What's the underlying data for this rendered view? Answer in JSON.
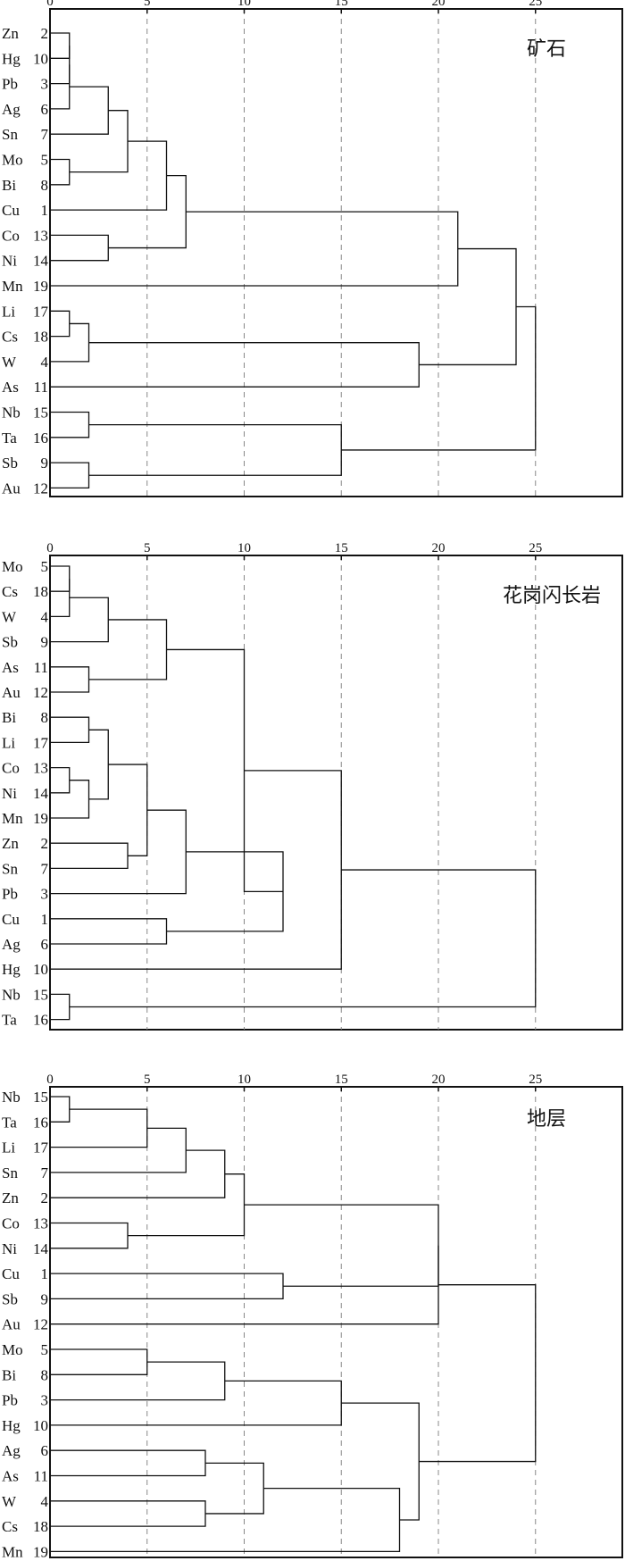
{
  "chart_data": [
    {
      "type": "dendrogram",
      "title": "矿石",
      "x_ticks": [
        0,
        5,
        10,
        15,
        20,
        25
      ],
      "xlim": [
        0,
        25
      ],
      "grid": "vertical dashed at 5, 10, 15, 20, 25",
      "leaves": [
        {
          "element": "Zn",
          "id": "2"
        },
        {
          "element": "Hg",
          "id": "10"
        },
        {
          "element": "Pb",
          "id": "3"
        },
        {
          "element": "Ag",
          "id": "6"
        },
        {
          "element": "Sn",
          "id": "7"
        },
        {
          "element": "Mo",
          "id": "5"
        },
        {
          "element": "Bi",
          "id": "8"
        },
        {
          "element": "Cu",
          "id": "1"
        },
        {
          "element": "Co",
          "id": "13"
        },
        {
          "element": "Ni",
          "id": "14"
        },
        {
          "element": "Mn",
          "id": "19"
        },
        {
          "element": "Li",
          "id": "17"
        },
        {
          "element": "Cs",
          "id": "18"
        },
        {
          "element": "W",
          "id": "4"
        },
        {
          "element": "As",
          "id": "11"
        },
        {
          "element": "Nb",
          "id": "15"
        },
        {
          "element": "Ta",
          "id": "16"
        },
        {
          "element": "Sb",
          "id": "9"
        },
        {
          "element": "Au",
          "id": "12"
        }
      ],
      "merges": [
        {
          "a": 0,
          "b": 1,
          "dist": 1
        },
        {
          "a": 19,
          "b": 2,
          "dist": 1
        },
        {
          "a": 20,
          "b": 3,
          "dist": 1
        },
        {
          "a": 21,
          "b": 4,
          "dist": 3
        },
        {
          "a": 5,
          "b": 6,
          "dist": 1
        },
        {
          "a": 22,
          "b": 23,
          "dist": 4
        },
        {
          "a": 24,
          "b": 7,
          "dist": 6
        },
        {
          "a": 8,
          "b": 9,
          "dist": 3
        },
        {
          "a": 25,
          "b": 26,
          "dist": 7
        },
        {
          "a": 27,
          "b": 10,
          "dist": 21
        },
        {
          "a": 11,
          "b": 12,
          "dist": 1
        },
        {
          "a": 29,
          "b": 13,
          "dist": 2
        },
        {
          "a": 30,
          "b": 14,
          "dist": 19
        },
        {
          "a": 28,
          "b": 31,
          "dist": 24
        },
        {
          "a": 15,
          "b": 16,
          "dist": 2
        },
        {
          "a": 17,
          "b": 18,
          "dist": 2
        },
        {
          "a": 33,
          "b": 34,
          "dist": 15
        },
        {
          "a": 32,
          "b": 35,
          "dist": 25
        }
      ]
    },
    {
      "type": "dendrogram",
      "title": "花岗闪长岩",
      "x_ticks": [
        0,
        5,
        10,
        15,
        20,
        25
      ],
      "xlim": [
        0,
        25
      ],
      "grid": "vertical dashed at 5, 10, 15, 20, 25",
      "leaves": [
        {
          "element": "Mo",
          "id": "5"
        },
        {
          "element": "Cs",
          "id": "18"
        },
        {
          "element": "W",
          "id": "4"
        },
        {
          "element": "Sb",
          "id": "9"
        },
        {
          "element": "As",
          "id": "11"
        },
        {
          "element": "Au",
          "id": "12"
        },
        {
          "element": "Bi",
          "id": "8"
        },
        {
          "element": "Li",
          "id": "17"
        },
        {
          "element": "Co",
          "id": "13"
        },
        {
          "element": "Ni",
          "id": "14"
        },
        {
          "element": "Mn",
          "id": "19"
        },
        {
          "element": "Zn",
          "id": "2"
        },
        {
          "element": "Sn",
          "id": "7"
        },
        {
          "element": "Pb",
          "id": "3"
        },
        {
          "element": "Cu",
          "id": "1"
        },
        {
          "element": "Ag",
          "id": "6"
        },
        {
          "element": "Hg",
          "id": "10"
        },
        {
          "element": "Nb",
          "id": "15"
        },
        {
          "element": "Ta",
          "id": "16"
        }
      ],
      "merges": [
        {
          "a": 0,
          "b": 1,
          "dist": 1
        },
        {
          "a": 19,
          "b": 2,
          "dist": 1
        },
        {
          "a": 20,
          "b": 3,
          "dist": 3
        },
        {
          "a": 4,
          "b": 5,
          "dist": 2
        },
        {
          "a": 21,
          "b": 22,
          "dist": 6
        },
        {
          "a": 6,
          "b": 7,
          "dist": 2
        },
        {
          "a": 8,
          "b": 9,
          "dist": 1
        },
        {
          "a": 25,
          "b": 10,
          "dist": 2
        },
        {
          "a": 24,
          "b": 26,
          "dist": 3
        },
        {
          "a": 11,
          "b": 12,
          "dist": 4
        },
        {
          "a": 27,
          "b": 28,
          "dist": 5
        },
        {
          "a": 29,
          "b": 13,
          "dist": 7
        },
        {
          "a": 14,
          "b": 15,
          "dist": 6
        },
        {
          "a": 30,
          "b": 31,
          "dist": 12
        },
        {
          "a": 23,
          "b": 32,
          "dist": 10
        },
        {
          "a": 33,
          "b": 16,
          "dist": 15
        },
        {
          "a": 17,
          "b": 18,
          "dist": 1
        },
        {
          "a": 34,
          "b": 35,
          "dist": 25
        }
      ]
    },
    {
      "type": "dendrogram",
      "title": "地层",
      "x_ticks": [
        0,
        5,
        10,
        15,
        20,
        25
      ],
      "xlim": [
        0,
        25
      ],
      "grid": "vertical dashed at 5, 10, 15, 20, 25",
      "leaves": [
        {
          "element": "Nb",
          "id": "15"
        },
        {
          "element": "Ta",
          "id": "16"
        },
        {
          "element": "Li",
          "id": "17"
        },
        {
          "element": "Sn",
          "id": "7"
        },
        {
          "element": "Zn",
          "id": "2"
        },
        {
          "element": "Co",
          "id": "13"
        },
        {
          "element": "Ni",
          "id": "14"
        },
        {
          "element": "Cu",
          "id": "1"
        },
        {
          "element": "Sb",
          "id": "9"
        },
        {
          "element": "Au",
          "id": "12"
        },
        {
          "element": "Mo",
          "id": "5"
        },
        {
          "element": "Bi",
          "id": "8"
        },
        {
          "element": "Pb",
          "id": "3"
        },
        {
          "element": "Hg",
          "id": "10"
        },
        {
          "element": "Ag",
          "id": "6"
        },
        {
          "element": "As",
          "id": "11"
        },
        {
          "element": "W",
          "id": "4"
        },
        {
          "element": "Cs",
          "id": "18"
        },
        {
          "element": "Mn",
          "id": "19"
        }
      ],
      "merges": [
        {
          "a": 0,
          "b": 1,
          "dist": 1
        },
        {
          "a": 19,
          "b": 2,
          "dist": 5
        },
        {
          "a": 20,
          "b": 3,
          "dist": 7
        },
        {
          "a": 21,
          "b": 4,
          "dist": 9
        },
        {
          "a": 5,
          "b": 6,
          "dist": 4
        },
        {
          "a": 22,
          "b": 23,
          "dist": 10
        },
        {
          "a": 7,
          "b": 8,
          "dist": 12
        },
        {
          "a": 24,
          "b": 25,
          "dist": 20
        },
        {
          "a": 26,
          "b": 9,
          "dist": 20
        },
        {
          "a": 10,
          "b": 11,
          "dist": 5
        },
        {
          "a": 28,
          "b": 12,
          "dist": 9
        },
        {
          "a": 29,
          "b": 13,
          "dist": 15
        },
        {
          "a": 14,
          "b": 15,
          "dist": 8
        },
        {
          "a": 16,
          "b": 17,
          "dist": 8
        },
        {
          "a": 31,
          "b": 32,
          "dist": 11
        },
        {
          "a": 33,
          "b": 18,
          "dist": 18
        },
        {
          "a": 30,
          "b": 34,
          "dist": 19
        },
        {
          "a": 27,
          "b": 35,
          "dist": 25
        }
      ]
    }
  ]
}
